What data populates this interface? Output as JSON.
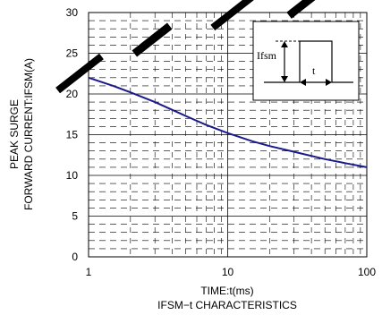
{
  "chart_data": {
    "type": "line",
    "title": "IFSM−t CHARACTERISTICS",
    "xlabel": "TIME:t(ms)",
    "ylabel_lines": [
      "PEAK SURGE",
      "FORWARD CURRENT:IFSM(A)"
    ],
    "xscale": "log",
    "xlim": [
      1,
      100
    ],
    "ylim": [
      0,
      30
    ],
    "x_ticks": [
      {
        "value": 1,
        "label": "1"
      },
      {
        "value": 10,
        "label": "10"
      },
      {
        "value": 100,
        "label": "100"
      }
    ],
    "y_ticks": [
      {
        "value": 0,
        "label": "0"
      },
      {
        "value": 5,
        "label": "5"
      },
      {
        "value": 10,
        "label": "10"
      },
      {
        "value": 15,
        "label": "15"
      },
      {
        "value": 20,
        "label": "20"
      },
      {
        "value": 25,
        "label": "25"
      },
      {
        "value": 30,
        "label": "30"
      }
    ],
    "grid": true,
    "series": [
      {
        "color": "#1a1a8c",
        "x": [
          1,
          1.5,
          2,
          3,
          5,
          7,
          10,
          15,
          20,
          30,
          50,
          70,
          100
        ],
        "y": [
          22,
          21,
          20.2,
          19,
          17.3,
          16.2,
          15.2,
          14.2,
          13.6,
          12.9,
          12.0,
          11.5,
          11.0
        ]
      }
    ],
    "inset": {
      "ifsm_label": "Ifsm",
      "t_label": "t"
    }
  }
}
